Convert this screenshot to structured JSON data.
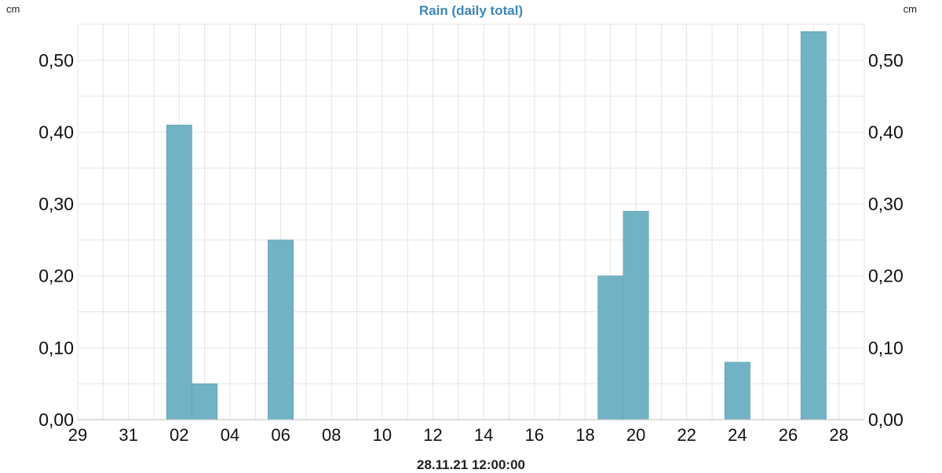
{
  "chart_data": {
    "type": "bar",
    "title": "Rain (daily total)",
    "unit_left": "cm",
    "unit_right": "cm",
    "timestamp": "28.11.21 12:00:00",
    "x_tick_labels": [
      "29",
      "31",
      "02",
      "04",
      "06",
      "08",
      "10",
      "12",
      "14",
      "16",
      "18",
      "20",
      "22",
      "24",
      "26",
      "28"
    ],
    "categories": [
      "29",
      "30",
      "31",
      "01",
      "02",
      "03",
      "04",
      "05",
      "06",
      "07",
      "08",
      "09",
      "10",
      "11",
      "12",
      "13",
      "14",
      "15",
      "16",
      "17",
      "18",
      "19",
      "20",
      "21",
      "22",
      "23",
      "24",
      "25",
      "26",
      "27",
      "28"
    ],
    "values": [
      0,
      0,
      0,
      0,
      0.41,
      0.05,
      0,
      0,
      0.25,
      0,
      0,
      0,
      0,
      0,
      0,
      0,
      0,
      0,
      0,
      0,
      0,
      0.2,
      0.29,
      0,
      0,
      0,
      0.08,
      0,
      0,
      0.54,
      0
    ],
    "ylim": [
      0,
      0.55
    ],
    "y_ticks": [
      "0,00",
      "0,10",
      "0,20",
      "0,30",
      "0,40",
      "0,50"
    ],
    "grid": true,
    "colors": {
      "bar": "#72b2c5",
      "bar_edge": "#5a9fb3",
      "grid": "#e4e4e4",
      "title": "#3d87b8"
    }
  }
}
